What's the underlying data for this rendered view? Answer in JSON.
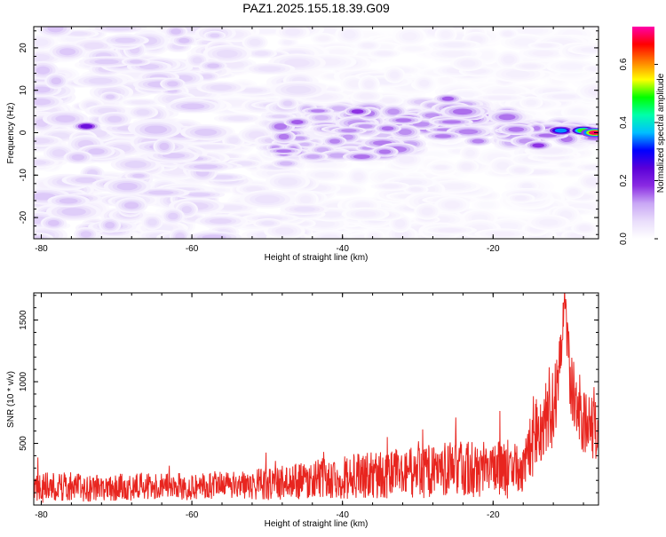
{
  "title": "PAZ1.2025.155.18.39.G09",
  "colors": {
    "snr_line": "#e8251f",
    "axis": "#000000",
    "background": "#ffffff",
    "colormap": [
      "#ffffff",
      "#e9ddfb",
      "#c9a7f5",
      "#8a2be2",
      "#5a00d8",
      "#0000ff",
      "#00bfff",
      "#00ffaa",
      "#00ff00",
      "#ffff00",
      "#ff8000",
      "#ff0000",
      "#ff00aa"
    ]
  },
  "chart_data": [
    {
      "type": "heatmap",
      "title": "PAZ1.2025.155.18.39.G09",
      "xlabel": "Height of straight line (km)",
      "ylabel": "Frequency (Hz)",
      "xlim": [
        -81,
        -6
      ],
      "ylim": [
        -25,
        25
      ],
      "x_ticks": [
        -80,
        -60,
        -40,
        -20
      ],
      "x_tick_labels": [
        "-80",
        "-60",
        "-40",
        "-20"
      ],
      "y_ticks": [
        -20,
        -10,
        0,
        10,
        20
      ],
      "y_tick_labels": [
        "-20",
        "-10",
        "0",
        "10",
        "20"
      ],
      "colorbar": {
        "label": "Normalized spectral amplitude",
        "range": [
          0,
          0.73
        ],
        "ticks": [
          0.0,
          0.2,
          0.4,
          0.6
        ],
        "tick_labels": [
          "0.0",
          "0.2",
          "0.4",
          "0.6"
        ]
      },
      "grid": false,
      "features": [
        {
          "x": -74,
          "y": 1.5,
          "amplitude": 0.22
        },
        {
          "x": -46,
          "y": 2.5,
          "amplitude": 0.16
        },
        {
          "x": -38,
          "y": 5,
          "amplitude": 0.18
        },
        {
          "x": -34,
          "y": 1,
          "amplitude": 0.15
        },
        {
          "x": -26,
          "y": 8,
          "amplitude": 0.16
        },
        {
          "x": -22,
          "y": -2,
          "amplitude": 0.14
        },
        {
          "x": -14,
          "y": -3,
          "amplitude": 0.18
        },
        {
          "x": -11,
          "y": 0.5,
          "amplitude": 0.35
        },
        {
          "x": -8,
          "y": 0.5,
          "amplitude": 0.5
        },
        {
          "x": -6.5,
          "y": 0,
          "amplitude": 0.7
        }
      ]
    },
    {
      "type": "line",
      "xlabel": "Height of straight line (km)",
      "ylabel": "SNR (10 * v/v)",
      "xlim": [
        -81,
        -6
      ],
      "ylim": [
        0,
        1720
      ],
      "x_ticks": [
        -80,
        -60,
        -40,
        -20
      ],
      "x_tick_labels": [
        "-80",
        "-60",
        "-40",
        "-20"
      ],
      "y_ticks": [
        500,
        1000,
        1500
      ],
      "y_tick_labels": [
        "500",
        "1000",
        "1500"
      ],
      "grid": false,
      "x": [
        -81,
        -78,
        -75,
        -72,
        -69,
        -66,
        -63,
        -60,
        -57,
        -54,
        -51,
        -48,
        -45,
        -42,
        -39,
        -36,
        -33,
        -30,
        -27,
        -24,
        -21,
        -18,
        -16,
        -15.5,
        -15,
        -14,
        -13,
        -12,
        -11.5,
        -11,
        -10.5,
        -10,
        -9.5,
        -9,
        -8,
        -7,
        -6
      ],
      "values": [
        140,
        150,
        145,
        140,
        145,
        150,
        150,
        150,
        155,
        160,
        170,
        180,
        200,
        220,
        230,
        240,
        255,
        265,
        280,
        295,
        300,
        290,
        280,
        330,
        480,
        620,
        700,
        820,
        1000,
        1200,
        1710,
        1200,
        900,
        850,
        700,
        650,
        550
      ],
      "noise_amplitude": [
        130,
        120,
        120,
        110,
        110,
        110,
        110,
        110,
        120,
        120,
        130,
        140,
        150,
        170,
        180,
        190,
        200,
        210,
        220,
        230,
        240,
        240,
        220,
        260,
        300,
        320,
        320,
        340,
        320,
        300,
        80,
        300,
        320,
        300,
        280,
        260,
        240
      ]
    }
  ]
}
